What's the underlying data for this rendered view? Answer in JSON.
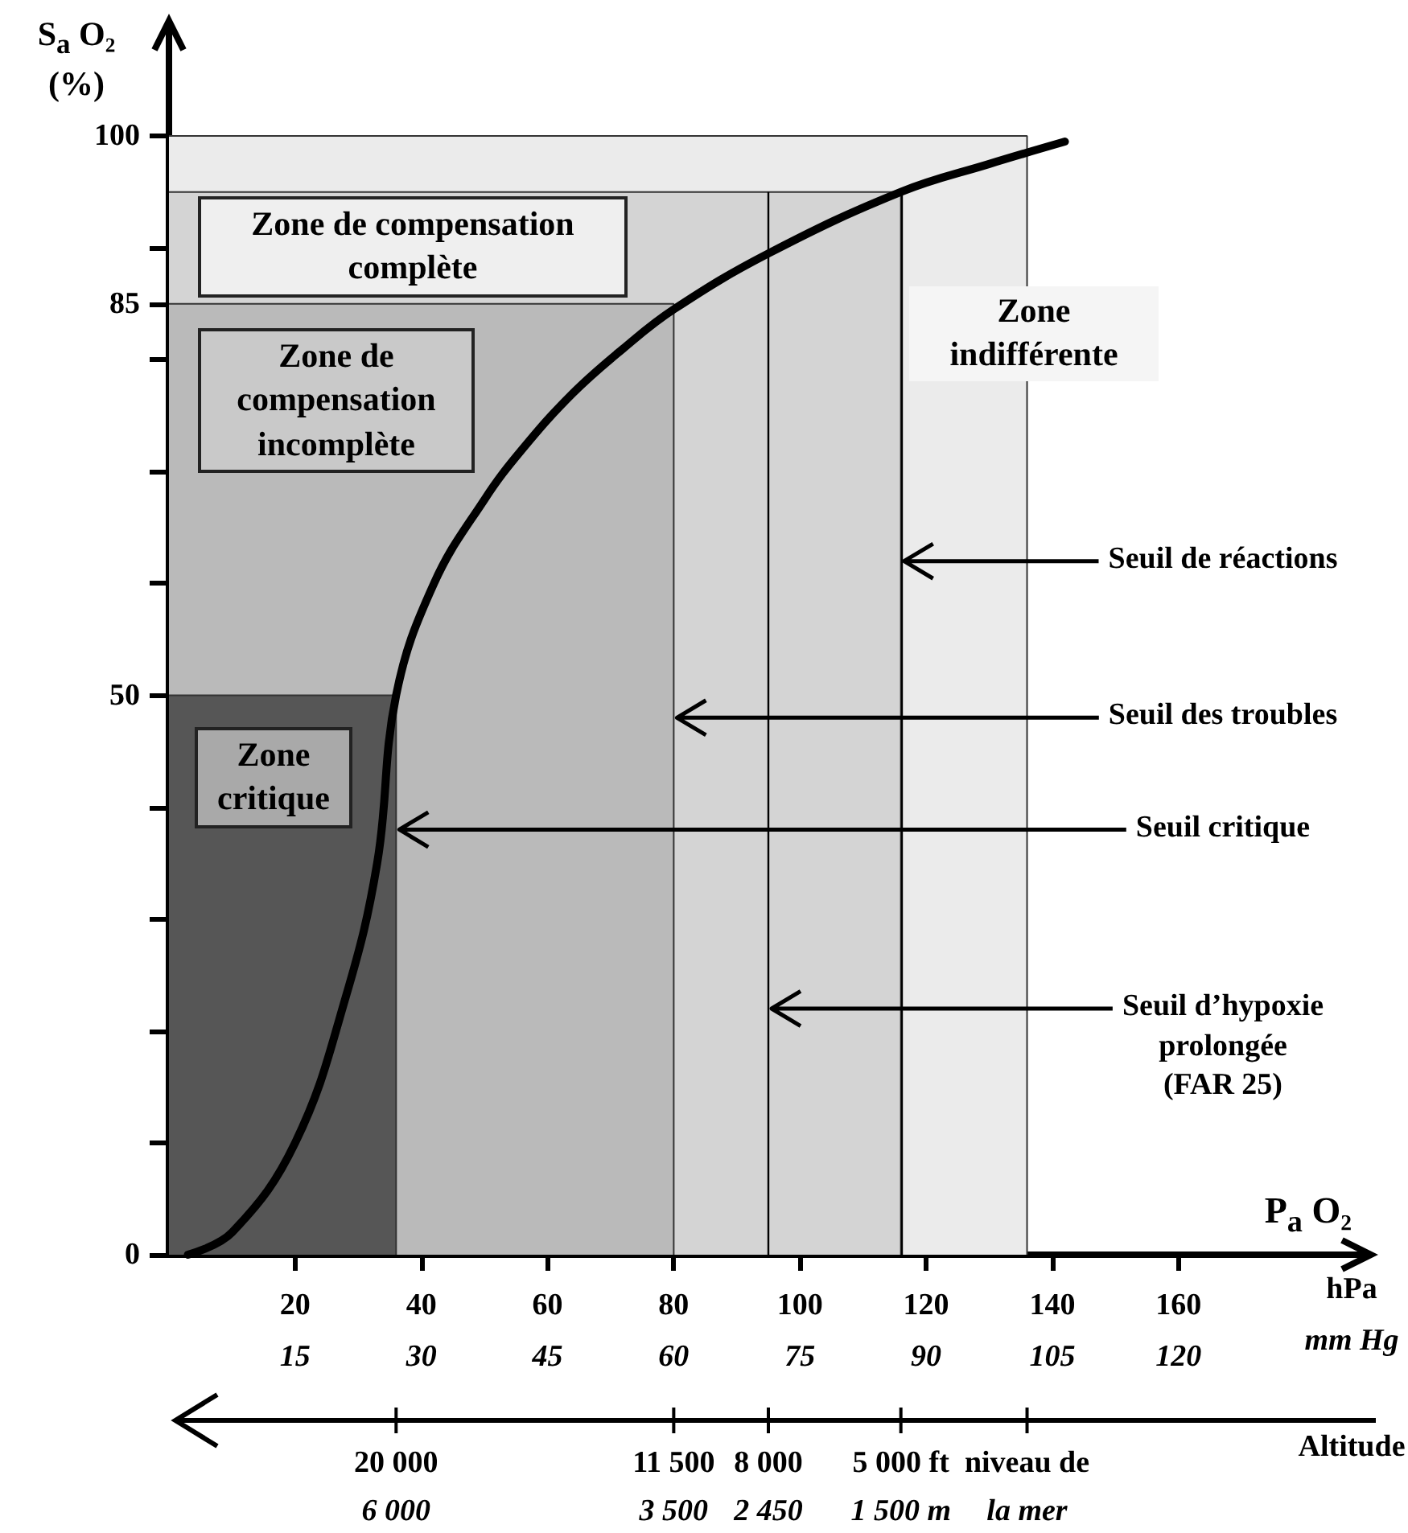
{
  "chart_data": {
    "type": "line",
    "xlabel": "P$_{a}$ O₂",
    "ylabel": "S$_{a}$ O₂\n(%)",
    "xlim": [
      0,
      190
    ],
    "xticks": [
      20,
      40,
      60,
      80,
      100,
      120,
      140,
      160
    ],
    "x2lim": [
      0,
      142.5
    ],
    "x2ticks": [
      15,
      30,
      45,
      60,
      75,
      90,
      105,
      120
    ],
    "ylim": [
      0,
      110
    ],
    "yticks": [
      0,
      {
        "value": 10,
        "label": null
      },
      {
        "value": 20,
        "label": null
      },
      {
        "value": 30,
        "label": null
      },
      {
        "value": 40,
        "label": null
      },
      50,
      {
        "value": 60,
        "label": null
      },
      {
        "value": 70,
        "label": null
      },
      {
        "value": 80,
        "label": null
      },
      85,
      {
        "value": 90,
        "label": null
      },
      100
    ],
    "series": [
      {
        "type": "area",
        "name": "Zone indifférente",
        "color": "#ebebeb",
        "x": [
          0,
          136,
          136
        ],
        "values": [
          100,
          100,
          0
        ]
      },
      {
        "type": "area",
        "name": "Zone de compensation complète",
        "color": "#d4d4d4",
        "x": [
          0,
          116,
          116
        ],
        "values": [
          95,
          95,
          0
        ]
      },
      {
        "type": "area",
        "name": "Zone de compensation incomplète",
        "color": "#bababa",
        "x": [
          0,
          80,
          80
        ],
        "values": [
          85,
          85,
          0
        ]
      },
      {
        "type": "area",
        "name": "Zone critique",
        "color": "#565656",
        "x": [
          0,
          36,
          36
        ],
        "values": [
          50,
          50,
          0
        ]
      },
      {
        "type": "line",
        "color": "#000000",
        "x": [
          3,
          10,
          20,
          28,
          33,
          36,
          42,
          50,
          56,
          64,
          72,
          80,
          95,
          116,
          130,
          142
        ],
        "values": [
          0,
          2,
          10,
          23,
          35,
          50,
          60,
          67.5,
          72,
          77,
          81,
          84.5,
          89.5,
          95,
          97.5,
          99.5
        ]
      }
    ],
    "ref_lines": [
      {
        "axis": "x",
        "value": 95,
        "color": "#000000"
      },
      {
        "axis": "x",
        "value": 116,
        "color": "#000000"
      }
    ],
    "annotations": [
      "hPa",
      "mm Hg",
      "Altitude",
      {
        "text": "Seuil de réactions",
        "x": 116,
        "y": 62
      },
      {
        "text": "Seuil des troubles",
        "x": 80,
        "y": 48
      },
      {
        "text": "Seuil critique",
        "x": 36,
        "y": 38
      },
      {
        "text": "Seuil d’hypoxie\nprolongée\n(FAR 25)",
        "x": 95,
        "y": 22
      },
      {
        "text": "20 000\n6 000",
        "x": 36
      },
      {
        "text": "11 500\n3 500",
        "x": 80
      },
      {
        "text": "8 000\n2 450",
        "x": 95
      },
      {
        "text": "5 000 ft\n1 500 m",
        "x": 116
      },
      {
        "text": "niveau de\nla mer",
        "x": 136
      }
    ]
  }
}
